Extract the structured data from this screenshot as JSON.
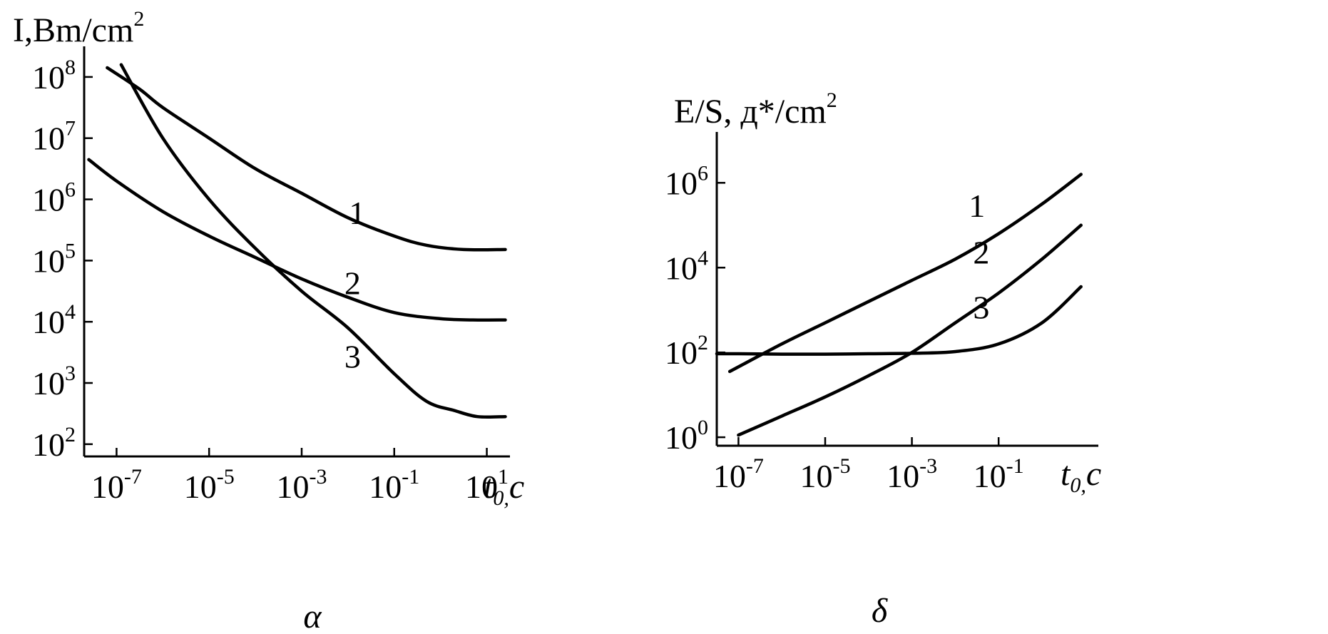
{
  "chart_data": [
    {
      "type": "line",
      "panel_label": "α",
      "ylabel": "I,Bm/cm",
      "ylabel_sup": "2",
      "xlabel": "t",
      "xlabel_sub": "0,",
      "xlabel_unit": "c",
      "x_scale": "log",
      "y_scale": "log",
      "xlim_exp": [
        -7.7,
        1.5
      ],
      "ylim_exp": [
        1.8,
        8.5
      ],
      "x_ticks": [
        {
          "base": "10",
          "exp": "-7",
          "value": -7
        },
        {
          "base": "10",
          "exp": "-5",
          "value": -5
        },
        {
          "base": "10",
          "exp": "-3",
          "value": -3
        },
        {
          "base": "10",
          "exp": "-1",
          "value": -1
        },
        {
          "base": "10",
          "exp": "1",
          "value": 1
        }
      ],
      "y_ticks": [
        {
          "base": "10",
          "exp": "2",
          "value": 2
        },
        {
          "base": "10",
          "exp": "3",
          "value": 3
        },
        {
          "base": "10",
          "exp": "4",
          "value": 4
        },
        {
          "base": "10",
          "exp": "5",
          "value": 5
        },
        {
          "base": "10",
          "exp": "6",
          "value": 6
        },
        {
          "base": "10",
          "exp": "7",
          "value": 7
        },
        {
          "base": "10",
          "exp": "8",
          "value": 8
        }
      ],
      "series": [
        {
          "name": "1",
          "label_at": [
            -1.8,
            5.6
          ],
          "x_exp": [
            -7.2,
            -6.5,
            -6,
            -5,
            -4,
            -3,
            -2,
            -1,
            -0.3,
            0.5,
            1.4
          ],
          "y_exp": [
            8.15,
            7.8,
            7.5,
            7.0,
            6.5,
            6.1,
            5.7,
            5.4,
            5.25,
            5.18,
            5.18
          ]
        },
        {
          "name": "2",
          "label_at": [
            -1.9,
            4.45
          ],
          "x_exp": [
            -7.6,
            -7,
            -6,
            -5,
            -4,
            -3,
            -2,
            -1,
            0,
            0.7,
            1.4
          ],
          "y_exp": [
            6.65,
            6.3,
            5.8,
            5.4,
            5.05,
            4.7,
            4.4,
            4.15,
            4.05,
            4.03,
            4.03
          ]
        },
        {
          "name": "3",
          "label_at": [
            -1.9,
            3.25
          ],
          "x_exp": [
            -6.9,
            -6,
            -5,
            -4,
            -3,
            -2,
            -1,
            -0.3,
            0.3,
            0.8,
            1.4
          ],
          "y_exp": [
            8.2,
            7.0,
            6.0,
            5.2,
            4.5,
            3.9,
            3.15,
            2.7,
            2.55,
            2.45,
            2.45
          ]
        }
      ]
    },
    {
      "type": "line",
      "panel_label": "δ",
      "ylabel": "E/S, д*/cm",
      "ylabel_sup": "2",
      "xlabel": "t",
      "xlabel_sub": "0,",
      "xlabel_unit": "c",
      "x_scale": "log",
      "y_scale": "log",
      "xlim_exp": [
        -7.5,
        1.3
      ],
      "ylim_exp": [
        -0.2,
        7.2
      ],
      "x_ticks": [
        {
          "base": "10",
          "exp": "-7",
          "value": -7
        },
        {
          "base": "10",
          "exp": "-5",
          "value": -5
        },
        {
          "base": "10",
          "exp": "-3",
          "value": -3
        },
        {
          "base": "10",
          "exp": "-1",
          "value": -1
        }
      ],
      "y_ticks": [
        {
          "base": "10",
          "exp": "0",
          "value": 0
        },
        {
          "base": "10",
          "exp": "2",
          "value": 2
        },
        {
          "base": "10",
          "exp": "4",
          "value": 4
        },
        {
          "base": "10",
          "exp": "6",
          "value": 6
        }
      ],
      "series": [
        {
          "name": "1",
          "label_at": [
            -1.5,
            5.2
          ],
          "x_exp": [
            -7.2,
            -6,
            -5,
            -4,
            -3,
            -2,
            -1,
            0,
            0.9
          ],
          "y_exp": [
            1.55,
            2.2,
            2.7,
            3.2,
            3.7,
            4.2,
            4.8,
            5.5,
            6.2
          ]
        },
        {
          "name": "2",
          "label_at": [
            -1.4,
            4.1
          ],
          "x_exp": [
            -7,
            -6,
            -5,
            -4,
            -3,
            -2,
            -1,
            0,
            0.9
          ],
          "y_exp": [
            0.05,
            0.5,
            0.95,
            1.45,
            2.0,
            2.7,
            3.4,
            4.2,
            5.0
          ]
        },
        {
          "name": "3",
          "label_at": [
            -1.4,
            2.8
          ],
          "x_exp": [
            -7.5,
            -7,
            -6,
            -5,
            -4,
            -3,
            -2,
            -1,
            0,
            0.9
          ],
          "y_exp": [
            1.97,
            1.97,
            1.96,
            1.96,
            1.97,
            1.98,
            2.02,
            2.2,
            2.7,
            3.55
          ]
        }
      ]
    }
  ]
}
